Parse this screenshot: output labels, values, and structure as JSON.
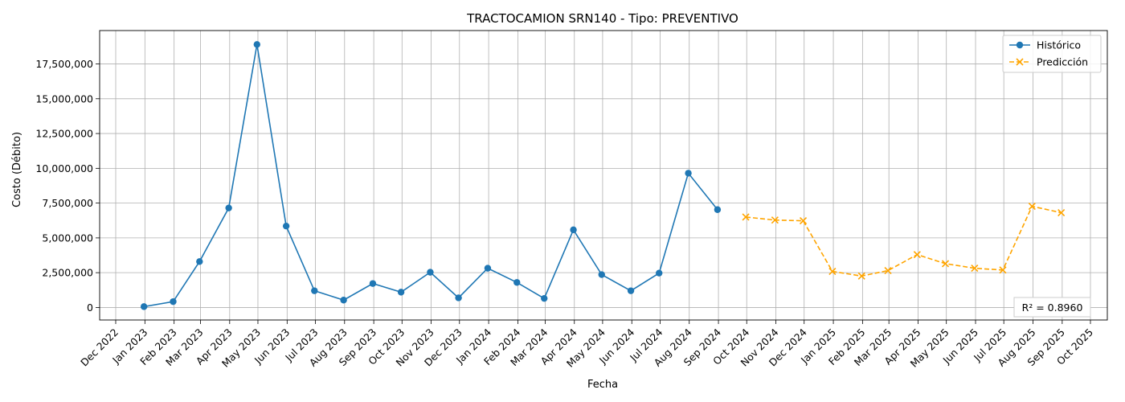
{
  "chart_data": {
    "type": "line",
    "title": "TRACTOCAMION SRN140 - Tipo: PREVENTIVO",
    "xlabel": "Fecha",
    "ylabel": "Costo (Débito)",
    "ylim": [
      -900000,
      19900000
    ],
    "yticks": [
      0,
      2500000,
      5000000,
      7500000,
      10000000,
      12500000,
      15000000,
      17500000
    ],
    "ytick_labels": [
      "0",
      "2,500,000",
      "5,000,000",
      "7,500,000",
      "10,000,000",
      "12,500,000",
      "15,000,000",
      "17,500,000"
    ],
    "x_ticks": [
      "Dec 2022",
      "Jan 2023",
      "Feb 2023",
      "Mar 2023",
      "Apr 2023",
      "May 2023",
      "Jun 2023",
      "Jul 2023",
      "Aug 2023",
      "Sep 2023",
      "Oct 2023",
      "Nov 2023",
      "Dec 2023",
      "Jan 2024",
      "Feb 2024",
      "Mar 2024",
      "Apr 2024",
      "May 2024",
      "Jun 2024",
      "Jul 2024",
      "Aug 2024",
      "Sep 2024",
      "Oct 2024",
      "Nov 2024",
      "Dec 2024",
      "Jan 2025",
      "Feb 2025",
      "Mar 2025",
      "Apr 2025",
      "May 2025",
      "Jun 2025",
      "Jul 2025",
      "Aug 2025",
      "Sep 2025",
      "Oct 2025"
    ],
    "grid": true,
    "legend_position": "top-right",
    "series": [
      {
        "name": "Histórico",
        "color": "#1f77b4",
        "style": "solid",
        "marker": "circle",
        "x": [
          "2022-12-31",
          "2023-01-31",
          "2023-02-28",
          "2023-03-31",
          "2023-04-30",
          "2023-05-31",
          "2023-06-30",
          "2023-07-31",
          "2023-08-31",
          "2023-09-30",
          "2023-10-31",
          "2023-11-30",
          "2023-12-31",
          "2024-01-31",
          "2024-02-29",
          "2024-03-31",
          "2024-04-30",
          "2024-05-31",
          "2024-06-30",
          "2024-07-31",
          "2024-08-31",
          "2024-09-30"
        ],
        "values": [
          60000,
          420000,
          3300000,
          7150000,
          18900000,
          5850000,
          1200000,
          530000,
          1720000,
          1100000,
          2530000,
          690000,
          2820000,
          1800000,
          650000,
          5580000,
          2360000,
          1200000,
          2470000,
          9650000,
          7030000,
          null
        ]
      },
      {
        "name": "Predicción",
        "color": "#ffa500",
        "style": "dashed",
        "marker": "x",
        "x": [
          "2024-09-30",
          "2024-10-31",
          "2024-11-30",
          "2024-12-31",
          "2025-01-31",
          "2025-02-28",
          "2025-03-31",
          "2025-04-30",
          "2025-05-31",
          "2025-06-30",
          "2025-07-31",
          "2025-08-31"
        ],
        "values": [
          6500000,
          6280000,
          6230000,
          2590000,
          2260000,
          2650000,
          3800000,
          3150000,
          2820000,
          2690000,
          7270000,
          6810000
        ]
      }
    ],
    "annotation": "R² = 0.8960"
  }
}
